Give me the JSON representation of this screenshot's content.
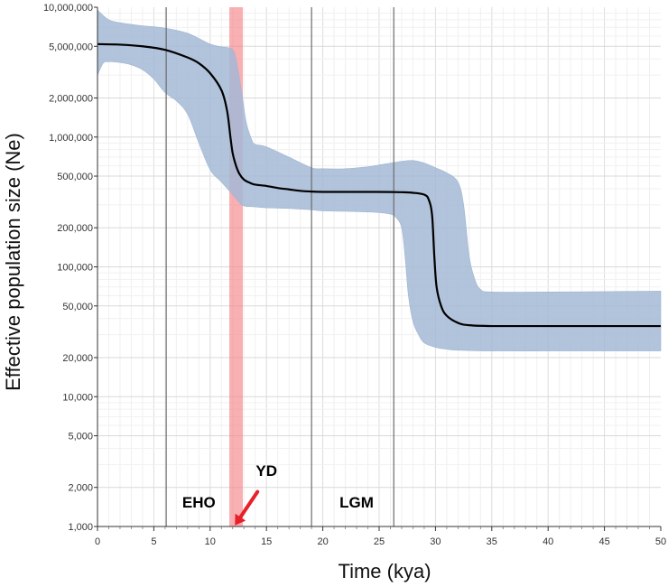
{
  "chart_data": {
    "type": "line",
    "xlabel": "Time (kya)",
    "ylabel": "Effective population size (Ne)",
    "yscale": "log",
    "xlim": [
      0,
      50
    ],
    "ylim": [
      1000,
      10000000
    ],
    "x_ticks": [
      0,
      5,
      10,
      15,
      20,
      25,
      30,
      35,
      40,
      45,
      50
    ],
    "x_tick_labels": [
      "0",
      "5",
      "10",
      "15",
      "20",
      "25",
      "30",
      "35",
      "40",
      "45",
      "50"
    ],
    "y_ticks": [
      1000,
      2000,
      5000,
      10000,
      20000,
      50000,
      100000,
      200000,
      500000,
      1000000,
      2000000,
      5000000,
      10000000
    ],
    "y_tick_labels": [
      "1,000",
      "2,000",
      "5,000",
      "10,000",
      "20,000",
      "50,000",
      "100,000",
      "200,000",
      "500,000",
      "1,000,000",
      "2,000,000",
      "5,000,000",
      "10,000,000"
    ],
    "grid": true,
    "series": [
      {
        "role": "median",
        "color": "#000000",
        "x": [
          0,
          2,
          4,
          6,
          8,
          9,
          10,
          11,
          11.5,
          11.8,
          12,
          12.3,
          12.6,
          13,
          13.5,
          14,
          15,
          16,
          17,
          18,
          19,
          20,
          22,
          24,
          26,
          27,
          28,
          29,
          29.4,
          29.7,
          29.9,
          30.1,
          30.5,
          31,
          32,
          33,
          35,
          40,
          45,
          50
        ],
        "y": [
          5200000,
          5150000,
          5000000,
          4700000,
          4100000,
          3700000,
          3100000,
          2300000,
          1600000,
          1000000,
          750000,
          600000,
          520000,
          470000,
          445000,
          430000,
          420000,
          405000,
          395000,
          385000,
          380000,
          378000,
          378000,
          378000,
          377000,
          376000,
          372000,
          360000,
          330000,
          250000,
          120000,
          70000,
          50000,
          42000,
          37000,
          35500,
          35000,
          35000,
          35000,
          35000
        ]
      },
      {
        "role": "ci_upper",
        "color": "#a5b9d6",
        "x": [
          0,
          1,
          2,
          4,
          6,
          8,
          10,
          11,
          11.5,
          12,
          12.3,
          12.8,
          13.2,
          13.7,
          14,
          15,
          17,
          19,
          20,
          22,
          24,
          25,
          27,
          28,
          29,
          30,
          31,
          32,
          32.5,
          33,
          33.5,
          34,
          35,
          40,
          45,
          50
        ],
        "y": [
          9500000,
          8000000,
          7600000,
          7200000,
          6900000,
          6300000,
          5200000,
          4950000,
          4900000,
          4700000,
          4000000,
          2200000,
          1300000,
          950000,
          880000,
          840000,
          700000,
          580000,
          570000,
          570000,
          590000,
          610000,
          650000,
          660000,
          630000,
          580000,
          530000,
          450000,
          300000,
          120000,
          80000,
          67000,
          64000,
          64000,
          64500,
          65000
        ]
      },
      {
        "role": "ci_lower",
        "color": "#a5b9d6",
        "x": [
          0,
          0.5,
          1,
          2,
          3,
          4,
          5,
          6,
          7,
          8,
          9,
          10,
          11,
          12,
          12.5,
          13,
          14,
          15,
          17,
          19,
          20,
          22,
          24,
          25,
          26,
          26.5,
          27,
          27.3,
          27.6,
          28,
          28.5,
          29,
          30,
          31,
          32,
          35,
          40,
          45,
          50
        ],
        "y": [
          3000000,
          3700000,
          3800000,
          3750000,
          3600000,
          3300000,
          2800000,
          2200000,
          1900000,
          1500000,
          900000,
          560000,
          450000,
          360000,
          320000,
          295000,
          290000,
          285000,
          282000,
          275000,
          270000,
          268000,
          265000,
          262000,
          255000,
          240000,
          200000,
          120000,
          60000,
          38000,
          30000,
          26000,
          24000,
          23200,
          22800,
          22500,
          22500,
          22500,
          22500
        ]
      }
    ],
    "vertical_lines": [
      {
        "x": 6.1,
        "color": "#6b6b6b"
      },
      {
        "x": 19.0,
        "color": "#6b6b6b"
      },
      {
        "x": 26.3,
        "color": "#6b6b6b"
      }
    ],
    "highlight_band": {
      "x_start": 11.7,
      "x_end": 12.9,
      "color": "#f4858a",
      "opacity": 0.65
    },
    "annotations": [
      {
        "text": "EHO",
        "x": 9.0,
        "y": 1400,
        "kind": "label"
      },
      {
        "text": "YD",
        "x": 15.0,
        "y": 2450,
        "kind": "label"
      },
      {
        "text": "LGM",
        "x": 23.0,
        "y": 1400,
        "kind": "label"
      }
    ],
    "arrow": {
      "color": "#e8202a",
      "from": {
        "x": 14.2,
        "y": 1850
      },
      "to": {
        "x": 12.2,
        "y": 1020
      }
    },
    "colors": {
      "ci_fill": "#a5b9d6",
      "median": "#000000",
      "grid": "#e6e6e6",
      "axis": "#333333"
    }
  }
}
